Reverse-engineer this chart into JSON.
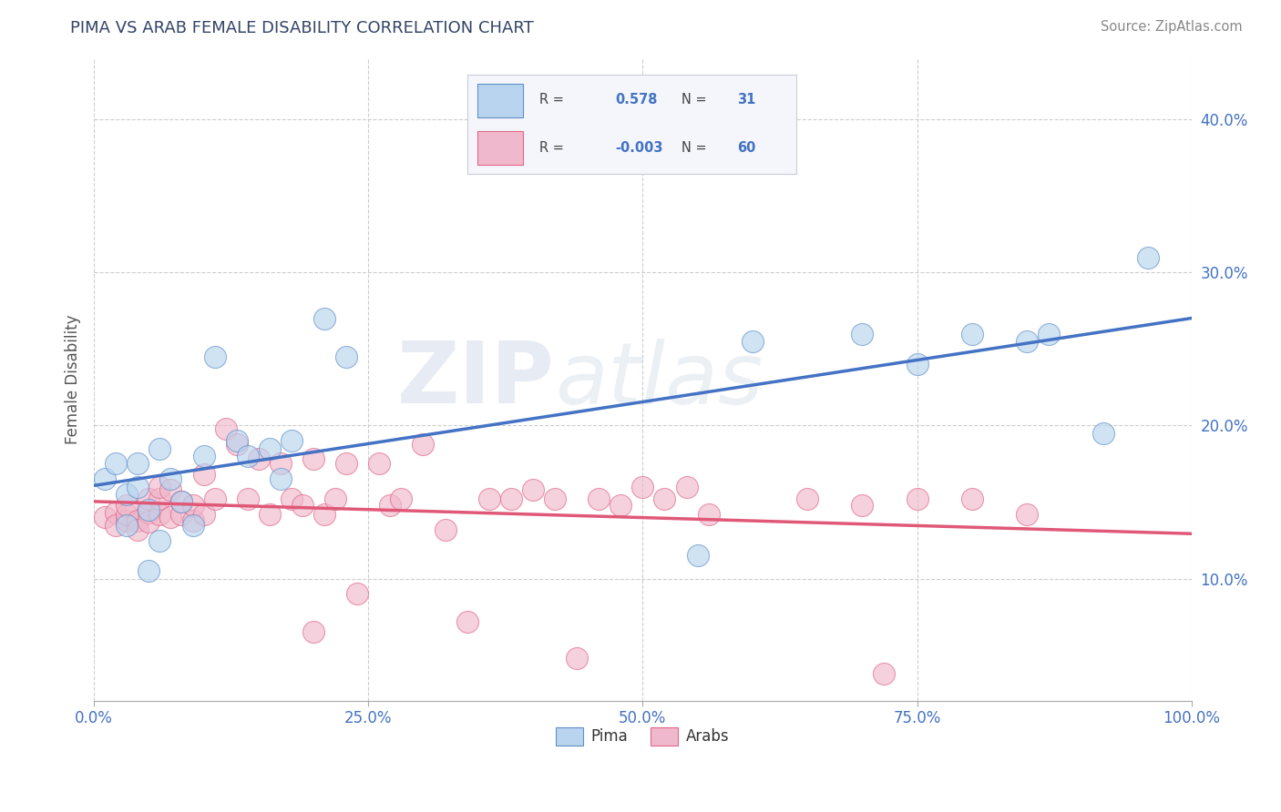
{
  "title": "PIMA VS ARAB FEMALE DISABILITY CORRELATION CHART",
  "source": "Source: ZipAtlas.com",
  "ylabel": "Female Disability",
  "xlim": [
    0.0,
    1.0
  ],
  "ylim": [
    0.02,
    0.44
  ],
  "yticks": [
    0.1,
    0.2,
    0.3,
    0.4
  ],
  "xticks": [
    0.0,
    0.25,
    0.5,
    0.75,
    1.0
  ],
  "xtick_labels": [
    "0.0%",
    "25.0%",
    "50.0%",
    "75.0%",
    "100.0%"
  ],
  "ytick_labels": [
    "10.0%",
    "20.0%",
    "30.0%",
    "40.0%"
  ],
  "background_color": "#ffffff",
  "grid_color": "#c8c8c8",
  "watermark_line1": "ZIP",
  "watermark_line2": "atlas",
  "pima_color": "#b8d4ee",
  "arab_color": "#f0b8cc",
  "pima_edge_color": "#6090c8",
  "arab_edge_color": "#e06888",
  "pima_line_color": "#4472c4",
  "arab_line_color": "#e05878",
  "legend_text_color": "#4472c4",
  "pima_R": 0.578,
  "pima_N": 31,
  "arab_R": -0.003,
  "arab_N": 60,
  "pima_x": [
    0.01,
    0.02,
    0.03,
    0.03,
    0.04,
    0.04,
    0.05,
    0.05,
    0.06,
    0.06,
    0.07,
    0.08,
    0.09,
    0.1,
    0.11,
    0.13,
    0.14,
    0.16,
    0.17,
    0.18,
    0.21,
    0.23,
    0.55,
    0.6,
    0.7,
    0.75,
    0.8,
    0.85,
    0.87,
    0.92,
    0.96
  ],
  "pima_y": [
    0.165,
    0.175,
    0.155,
    0.135,
    0.175,
    0.16,
    0.145,
    0.105,
    0.185,
    0.125,
    0.165,
    0.15,
    0.135,
    0.18,
    0.245,
    0.19,
    0.18,
    0.185,
    0.165,
    0.19,
    0.27,
    0.245,
    0.115,
    0.255,
    0.26,
    0.24,
    0.26,
    0.255,
    0.26,
    0.195,
    0.31
  ],
  "arab_x": [
    0.01,
    0.02,
    0.02,
    0.03,
    0.03,
    0.03,
    0.04,
    0.04,
    0.05,
    0.05,
    0.05,
    0.06,
    0.06,
    0.06,
    0.07,
    0.07,
    0.08,
    0.08,
    0.09,
    0.09,
    0.1,
    0.1,
    0.11,
    0.12,
    0.13,
    0.14,
    0.15,
    0.16,
    0.17,
    0.18,
    0.19,
    0.2,
    0.2,
    0.21,
    0.22,
    0.23,
    0.24,
    0.26,
    0.27,
    0.28,
    0.3,
    0.32,
    0.34,
    0.36,
    0.38,
    0.4,
    0.42,
    0.44,
    0.46,
    0.48,
    0.5,
    0.52,
    0.54,
    0.56,
    0.65,
    0.7,
    0.72,
    0.75,
    0.8,
    0.85
  ],
  "arab_y": [
    0.14,
    0.143,
    0.135,
    0.138,
    0.142,
    0.148,
    0.138,
    0.132,
    0.143,
    0.137,
    0.152,
    0.142,
    0.152,
    0.16,
    0.14,
    0.158,
    0.142,
    0.15,
    0.138,
    0.148,
    0.142,
    0.168,
    0.152,
    0.198,
    0.188,
    0.152,
    0.178,
    0.142,
    0.175,
    0.152,
    0.148,
    0.065,
    0.178,
    0.142,
    0.152,
    0.175,
    0.09,
    0.175,
    0.148,
    0.152,
    0.188,
    0.132,
    0.072,
    0.152,
    0.152,
    0.158,
    0.152,
    0.048,
    0.152,
    0.148,
    0.16,
    0.152,
    0.16,
    0.142,
    0.152,
    0.148,
    0.038,
    0.152,
    0.152,
    0.142
  ]
}
